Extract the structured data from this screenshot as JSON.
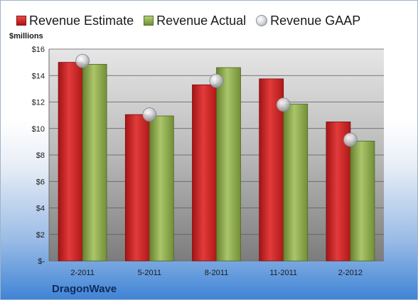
{
  "chart_data": {
    "type": "bar",
    "categories": [
      "2-2011",
      "5-2011",
      "8-2011",
      "11-2011",
      "2-2012"
    ],
    "series": [
      {
        "name": "Revenue Estimate",
        "values": [
          15.0,
          11.05,
          13.3,
          13.75,
          10.5
        ],
        "color": "#c81e1e"
      },
      {
        "name": "Revenue Actual",
        "values": [
          14.85,
          10.95,
          14.6,
          11.85,
          9.05
        ],
        "color": "#8aa64a"
      },
      {
        "name": "Revenue GAAP",
        "values": [
          15.1,
          11.05,
          13.6,
          11.8,
          9.15
        ],
        "color": "#c8ccd2"
      }
    ],
    "ylabel": "$millions",
    "ylim": [
      0,
      16
    ],
    "yticks": [
      0,
      2,
      4,
      6,
      8,
      10,
      12,
      14,
      16
    ],
    "ytick_labels": [
      "$-",
      "$2",
      "$4",
      "$6",
      "$8",
      "$10",
      "$12",
      "$14",
      "$16"
    ],
    "legend_position": "top",
    "grid": true
  },
  "legend": {
    "estimate": "Revenue Estimate",
    "actual": "Revenue Actual",
    "gaap": "Revenue GAAP"
  },
  "company": "DragonWave"
}
